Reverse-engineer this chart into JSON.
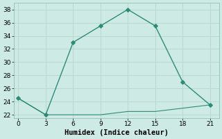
{
  "xlabel": "Humidex (Indice chaleur)",
  "line1_x": [
    0,
    3,
    6,
    9,
    12,
    15,
    18,
    21
  ],
  "line1_y": [
    24.5,
    22,
    33,
    35.5,
    38,
    35.5,
    27,
    23.5
  ],
  "line2_x": [
    0,
    3,
    6,
    9,
    12,
    15,
    18,
    21
  ],
  "line2_y": [
    24.5,
    22,
    22,
    22,
    22.5,
    22.5,
    23,
    23.5
  ],
  "line_color": "#2d8b78",
  "bg_color": "#ceeae4",
  "grid_color": "#b8d8d2",
  "xlim": [
    -0.5,
    22
  ],
  "ylim": [
    21.5,
    39
  ],
  "xticks": [
    0,
    3,
    6,
    9,
    12,
    15,
    18,
    21
  ],
  "yticks": [
    22,
    24,
    26,
    28,
    30,
    32,
    34,
    36,
    38
  ],
  "tick_fontsize": 6.5,
  "xlabel_fontsize": 7.5
}
